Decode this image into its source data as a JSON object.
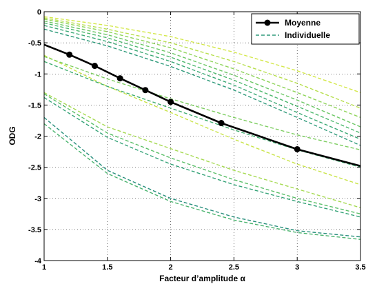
{
  "chart_data": {
    "type": "line",
    "title": "",
    "xlabel": "Facteur d’amplitude α",
    "ylabel": "ODG",
    "xlim": [
      1,
      3.5
    ],
    "ylim": [
      -4,
      0
    ],
    "xticks": [
      1,
      1.5,
      2,
      2.5,
      3,
      3.5
    ],
    "xtick_labels": [
      "1",
      "1.5",
      "2",
      "2.5",
      "3",
      "3.5"
    ],
    "yticks": [
      0,
      -0.5,
      -1,
      -1.5,
      -2,
      -2.5,
      -3,
      -3.5,
      -4
    ],
    "ytick_labels": [
      "0",
      "-0.5",
      "-1",
      "-1.5",
      "-2",
      "-2.5",
      "-3",
      "-3.5",
      "-4"
    ],
    "grid": true,
    "legend_position": "top-right",
    "mean_series": {
      "name": "Moyenne",
      "color": "#000000",
      "x": [
        1,
        1.2,
        1.4,
        1.6,
        1.8,
        2,
        2.4,
        3,
        3.5
      ],
      "y": [
        -0.53,
        -0.69,
        -0.87,
        -1.07,
        -1.26,
        -1.45,
        -1.79,
        -2.21,
        -2.48
      ]
    },
    "individual_label": "Individuelle",
    "individual_legend_color": "#2e9a7a",
    "individual_series": [
      {
        "color": "#d4e84a",
        "x": [
          1,
          1.5,
          2,
          2.5,
          3,
          3.5
        ],
        "y": [
          -0.08,
          -0.22,
          -0.4,
          -0.65,
          -0.95,
          -1.3
        ]
      },
      {
        "color": "#b7df4c",
        "x": [
          1,
          1.5,
          2,
          2.5,
          3,
          3.5
        ],
        "y": [
          -0.1,
          -0.28,
          -0.5,
          -0.8,
          -1.15,
          -1.55
        ]
      },
      {
        "color": "#8fd45a",
        "x": [
          1,
          1.5,
          2,
          2.5,
          3,
          3.5
        ],
        "y": [
          -0.12,
          -0.32,
          -0.58,
          -0.92,
          -1.3,
          -1.7
        ]
      },
      {
        "color": "#6cc765",
        "x": [
          1,
          1.5,
          2,
          2.5,
          3,
          3.5
        ],
        "y": [
          -0.15,
          -0.37,
          -0.66,
          -1.02,
          -1.42,
          -1.85
        ]
      },
      {
        "color": "#4db86d",
        "x": [
          1,
          1.5,
          2,
          2.5,
          3,
          3.5
        ],
        "y": [
          -0.18,
          -0.42,
          -0.73,
          -1.1,
          -1.52,
          -1.95
        ]
      },
      {
        "color": "#3aa874",
        "x": [
          1,
          1.5,
          2,
          2.5,
          3,
          3.5
        ],
        "y": [
          -0.22,
          -0.48,
          -0.8,
          -1.18,
          -1.62,
          -2.05
        ]
      },
      {
        "color": "#2e9a7a",
        "x": [
          1,
          1.5,
          2,
          2.5,
          3,
          3.5
        ],
        "y": [
          -0.28,
          -0.55,
          -0.88,
          -1.26,
          -1.7,
          -2.15
        ]
      },
      {
        "color": "#c9e448",
        "x": [
          1,
          1.5,
          2,
          2.5,
          3,
          3.5
        ],
        "y": [
          -0.7,
          -1.2,
          -1.62,
          -2.05,
          -2.45,
          -2.78
        ]
      },
      {
        "color": "#7ccd5f",
        "x": [
          1,
          1.5,
          2,
          2.5,
          3,
          3.5
        ],
        "y": [
          -0.72,
          -1.08,
          -1.4,
          -1.7,
          -1.98,
          -2.22
        ]
      },
      {
        "color": "#41ad70",
        "x": [
          1,
          1.5,
          2,
          2.5,
          3,
          3.5
        ],
        "y": [
          -0.8,
          -1.2,
          -1.55,
          -1.9,
          -2.22,
          -2.5
        ]
      },
      {
        "color": "#a6da52",
        "x": [
          1,
          1.5,
          2,
          2.5,
          3,
          3.5
        ],
        "y": [
          -1.3,
          -1.85,
          -2.2,
          -2.55,
          -2.85,
          -3.15
        ]
      },
      {
        "color": "#5bbf69",
        "x": [
          1,
          1.5,
          2,
          2.5,
          3,
          3.5
        ],
        "y": [
          -1.32,
          -1.95,
          -2.35,
          -2.7,
          -3.0,
          -3.25
        ]
      },
      {
        "color": "#34a277",
        "x": [
          1,
          1.5,
          2,
          2.5,
          3,
          3.5
        ],
        "y": [
          -1.38,
          -2.02,
          -2.45,
          -2.78,
          -3.05,
          -3.3
        ]
      },
      {
        "color": "#288f7c",
        "x": [
          1,
          1.5,
          2,
          2.5,
          3,
          3.5
        ],
        "y": [
          -1.7,
          -2.55,
          -3.0,
          -3.3,
          -3.52,
          -3.62
        ]
      },
      {
        "color": "#4ab46e",
        "x": [
          1,
          1.5,
          2,
          2.5,
          3,
          3.5
        ],
        "y": [
          -1.8,
          -2.6,
          -3.05,
          -3.35,
          -3.55,
          -3.66
        ]
      }
    ]
  }
}
